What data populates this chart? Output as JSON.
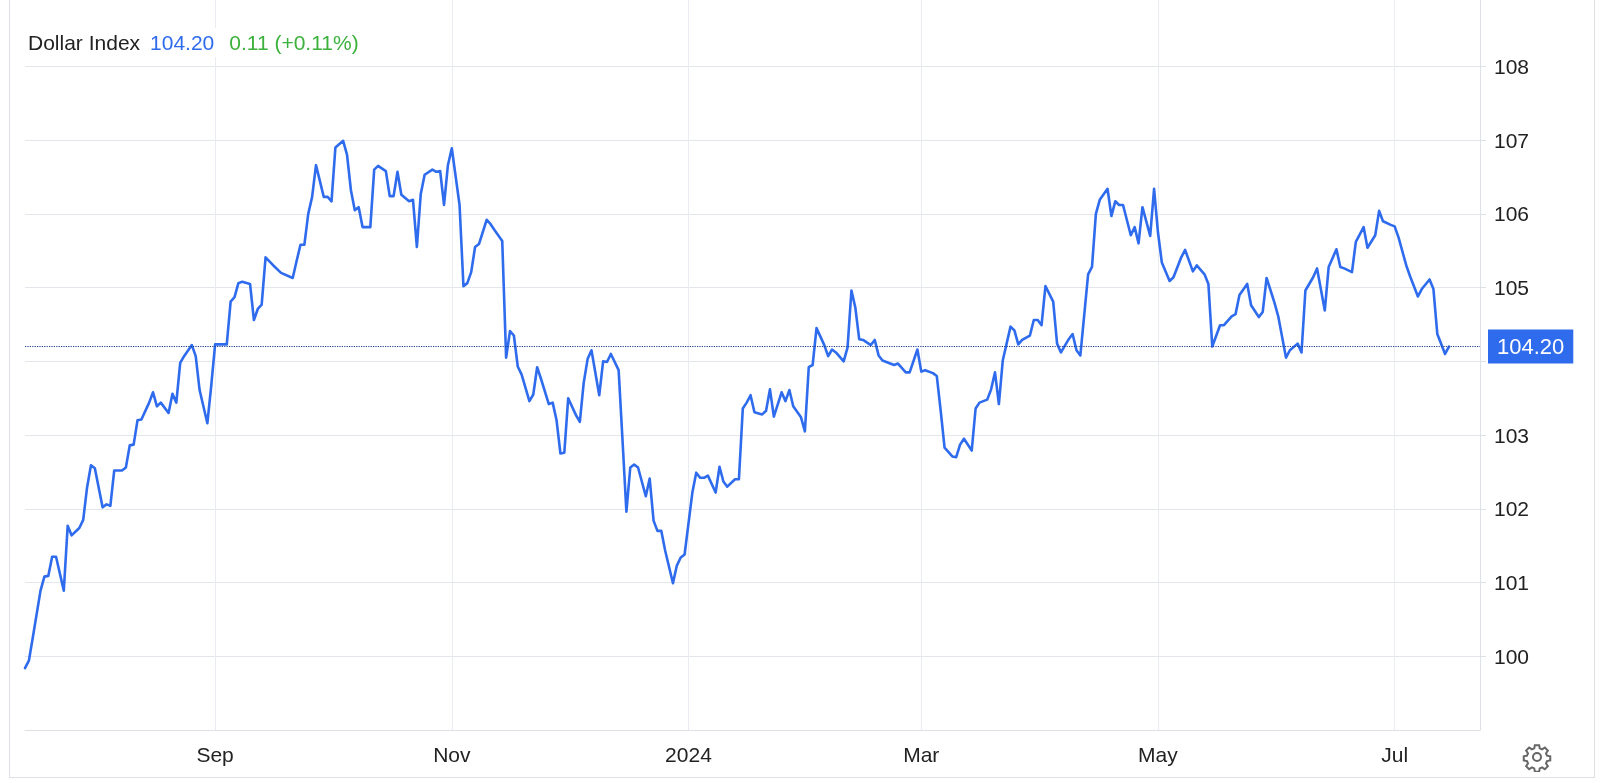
{
  "chart_data": {
    "type": "line",
    "title": "Dollar Index",
    "annotations": [
      "104.20",
      "0.11 (+0.11%)"
    ],
    "xlim": [
      "2023-07-14",
      "2024-07-23"
    ],
    "xticks": [
      {
        "value": "2023-09-01",
        "label": "Sep"
      },
      {
        "value": "2023-11-01",
        "label": "Nov"
      },
      {
        "value": "2024-01-01",
        "label": "2024"
      },
      {
        "value": "2024-03-01",
        "label": "Mar"
      },
      {
        "value": "2024-05-01",
        "label": "May"
      },
      {
        "value": "2024-07-01",
        "label": "Jul"
      }
    ],
    "ylim": [
      99,
      108.9
    ],
    "yticks": [
      100,
      101,
      102,
      103,
      {
        "value": 104,
        "label": null
      },
      105,
      106,
      107,
      108
    ],
    "grid": true,
    "marker": "none",
    "line_style": "solid",
    "ref_lines": [
      {
        "axis": "y",
        "value": 104.2,
        "label": "104.20",
        "color": "#1f3f8f",
        "line_style": "dotted"
      }
    ],
    "series": [
      {
        "color": "#2f6bed",
        "x": [
          "2023-07-14",
          "2023-07-15",
          "2023-07-16",
          "2023-07-18",
          "2023-07-19",
          "2023-07-20",
          "2023-07-21",
          "2023-07-22",
          "2023-07-24",
          "2023-07-25",
          "2023-07-26",
          "2023-07-28",
          "2023-07-29",
          "2023-07-30",
          "2023-07-31",
          "2023-08-01",
          "2023-08-03",
          "2023-08-04",
          "2023-08-05",
          "2023-08-06",
          "2023-08-08",
          "2023-08-09",
          "2023-08-10",
          "2023-08-11",
          "2023-08-12",
          "2023-08-13",
          "2023-08-15",
          "2023-08-16",
          "2023-08-17",
          "2023-08-18",
          "2023-08-20",
          "2023-08-21",
          "2023-08-22",
          "2023-08-23",
          "2023-08-24",
          "2023-08-26",
          "2023-08-27",
          "2023-08-28",
          "2023-08-30",
          "2023-08-31",
          "2023-09-01",
          "2023-09-02",
          "2023-09-04",
          "2023-09-05",
          "2023-09-06",
          "2023-09-07",
          "2023-09-08",
          "2023-09-10",
          "2023-09-11",
          "2023-09-12",
          "2023-09-13",
          "2023-09-14",
          "2023-09-16",
          "2023-09-18",
          "2023-09-21",
          "2023-09-22",
          "2023-09-23",
          "2023-09-24",
          "2023-09-25",
          "2023-09-26",
          "2023-09-27",
          "2023-09-29",
          "2023-09-30",
          "2023-10-01",
          "2023-10-02",
          "2023-10-04",
          "2023-10-05",
          "2023-10-06",
          "2023-10-07",
          "2023-10-08",
          "2023-10-09",
          "2023-10-11",
          "2023-10-12",
          "2023-10-13",
          "2023-10-15",
          "2023-10-16",
          "2023-10-17",
          "2023-10-18",
          "2023-10-19",
          "2023-10-21",
          "2023-10-22",
          "2023-10-23",
          "2023-10-24",
          "2023-10-25",
          "2023-10-27",
          "2023-10-28",
          "2023-10-29",
          "2023-10-30",
          "2023-10-31",
          "2023-11-01",
          "2023-11-03",
          "2023-11-04",
          "2023-11-05",
          "2023-11-06",
          "2023-11-07",
          "2023-11-08",
          "2023-11-10",
          "2023-11-11",
          "2023-11-12",
          "2023-11-14",
          "2023-11-15",
          "2023-11-16",
          "2023-11-17",
          "2023-11-18",
          "2023-11-19",
          "2023-11-21",
          "2023-11-22",
          "2023-11-23",
          "2023-11-24",
          "2023-11-26",
          "2023-11-27",
          "2023-11-28",
          "2023-11-29",
          "2023-11-30",
          "2023-12-01",
          "2023-12-03",
          "2023-12-04",
          "2023-12-05",
          "2023-12-06",
          "2023-12-07",
          "2023-12-09",
          "2023-12-10",
          "2023-12-11",
          "2023-12-12",
          "2023-12-14",
          "2023-12-15",
          "2023-12-16",
          "2023-12-17",
          "2023-12-18",
          "2023-12-19",
          "2023-12-21",
          "2023-12-22",
          "2023-12-23",
          "2023-12-24",
          "2023-12-25",
          "2023-12-26",
          "2023-12-28",
          "2023-12-29",
          "2023-12-30",
          "2023-12-31",
          "2024-01-02",
          "2024-01-03",
          "2024-01-04",
          "2024-01-05",
          "2024-01-06",
          "2024-01-08",
          "2024-01-09",
          "2024-01-10",
          "2024-01-11",
          "2024-01-13",
          "2024-01-14",
          "2024-01-15",
          "2024-01-16",
          "2024-01-17",
          "2024-01-18",
          "2024-01-20",
          "2024-01-21",
          "2024-01-22",
          "2024-01-23",
          "2024-01-25",
          "2024-01-26",
          "2024-01-27",
          "2024-01-28",
          "2024-01-30",
          "2024-01-31",
          "2024-02-01",
          "2024-02-02",
          "2024-02-03",
          "2024-02-05",
          "2024-02-06",
          "2024-02-07",
          "2024-02-08",
          "2024-02-10",
          "2024-02-11",
          "2024-02-12",
          "2024-02-13",
          "2024-02-14",
          "2024-02-15",
          "2024-02-17",
          "2024-02-18",
          "2024-02-19",
          "2024-02-20",
          "2024-02-22",
          "2024-02-23",
          "2024-02-24",
          "2024-02-26",
          "2024-02-27",
          "2024-02-29",
          "2024-03-01",
          "2024-03-02",
          "2024-03-04",
          "2024-03-05",
          "2024-03-06",
          "2024-03-07",
          "2024-03-09",
          "2024-03-10",
          "2024-03-11",
          "2024-03-12",
          "2024-03-14",
          "2024-03-15",
          "2024-03-16",
          "2024-03-18",
          "2024-03-19",
          "2024-03-20",
          "2024-03-21",
          "2024-03-22",
          "2024-03-24",
          "2024-03-25",
          "2024-03-26",
          "2024-03-27",
          "2024-03-29",
          "2024-03-30",
          "2024-03-31",
          "2024-04-01",
          "2024-04-02",
          "2024-04-04",
          "2024-04-05",
          "2024-04-06",
          "2024-04-08",
          "2024-04-09",
          "2024-04-10",
          "2024-04-11",
          "2024-04-13",
          "2024-04-14",
          "2024-04-15",
          "2024-04-16",
          "2024-04-18",
          "2024-04-19",
          "2024-04-20",
          "2024-04-21",
          "2024-04-22",
          "2024-04-24",
          "2024-04-25",
          "2024-04-26",
          "2024-04-27",
          "2024-04-29",
          "2024-04-30",
          "2024-05-01",
          "2024-05-02",
          "2024-05-04",
          "2024-05-05",
          "2024-05-07",
          "2024-05-08",
          "2024-05-10",
          "2024-05-11",
          "2024-05-13",
          "2024-05-14",
          "2024-05-15",
          "2024-05-17",
          "2024-05-18",
          "2024-05-20",
          "2024-05-21",
          "2024-05-22",
          "2024-05-24",
          "2024-05-25",
          "2024-05-27",
          "2024-05-28",
          "2024-05-29",
          "2024-05-31",
          "2024-06-01",
          "2024-06-03",
          "2024-06-04",
          "2024-06-06",
          "2024-06-07",
          "2024-06-08",
          "2024-06-10",
          "2024-06-11",
          "2024-06-13",
          "2024-06-14",
          "2024-06-16",
          "2024-06-17",
          "2024-06-18",
          "2024-06-20",
          "2024-06-21",
          "2024-06-23",
          "2024-06-24",
          "2024-06-26",
          "2024-06-27",
          "2024-06-28",
          "2024-06-30",
          "2024-07-01",
          "2024-07-02",
          "2024-07-04",
          "2024-07-05",
          "2024-07-07",
          "2024-07-08",
          "2024-07-10",
          "2024-07-11",
          "2024-07-12",
          "2024-07-14",
          "2024-07-15"
        ],
        "values": [
          99.84,
          99.94,
          100.25,
          100.89,
          101.08,
          101.09,
          101.35,
          101.35,
          100.89,
          101.77,
          101.64,
          101.74,
          101.85,
          102.29,
          102.59,
          102.55,
          102.02,
          102.06,
          102.04,
          102.52,
          102.52,
          102.56,
          102.86,
          102.87,
          103.2,
          103.21,
          103.44,
          103.58,
          103.39,
          103.44,
          103.3,
          103.56,
          103.44,
          103.98,
          104.07,
          104.22,
          104.07,
          103.61,
          103.16,
          103.67,
          104.23,
          104.23,
          104.23,
          104.81,
          104.87,
          105.06,
          105.08,
          105.05,
          104.56,
          104.71,
          104.77,
          105.41,
          105.3,
          105.2,
          105.13,
          105.36,
          105.58,
          105.58,
          106.0,
          106.23,
          106.66,
          106.23,
          106.23,
          106.17,
          106.9,
          106.99,
          106.8,
          106.32,
          106.05,
          106.09,
          105.82,
          105.82,
          106.6,
          106.65,
          106.58,
          106.24,
          106.24,
          106.57,
          106.26,
          106.17,
          106.19,
          105.55,
          106.27,
          106.53,
          106.6,
          106.57,
          106.58,
          106.12,
          106.66,
          106.89,
          106.12,
          105.02,
          105.06,
          105.21,
          105.55,
          105.59,
          105.92,
          105.86,
          105.78,
          105.63,
          104.05,
          104.41,
          104.35,
          103.93,
          103.82,
          103.46,
          103.55,
          103.92,
          103.76,
          103.42,
          103.44,
          103.2,
          102.75,
          102.76,
          103.5,
          103.27,
          103.18,
          103.71,
          104.03,
          104.15,
          103.54,
          104.0,
          103.99,
          104.1,
          103.88,
          102.93,
          101.96,
          102.56,
          102.6,
          102.56,
          102.17,
          102.41,
          101.84,
          101.7,
          101.7,
          101.43,
          100.99,
          101.23,
          101.34,
          101.38,
          102.22,
          102.49,
          102.42,
          102.42,
          102.45,
          102.22,
          102.57,
          102.37,
          102.3,
          102.4,
          102.4,
          103.36,
          103.44,
          103.54,
          103.31,
          103.28,
          103.33,
          103.62,
          103.25,
          103.58,
          103.46,
          103.61,
          103.39,
          103.24,
          103.05,
          103.92,
          103.95,
          104.45,
          104.22,
          104.07,
          104.16,
          104.12,
          104.0,
          104.19,
          104.96,
          104.73,
          104.3,
          104.29,
          104.22,
          104.29,
          104.08,
          104.01,
          103.97,
          103.95,
          103.97,
          103.85,
          103.85,
          104.16,
          103.86,
          103.88,
          103.84,
          103.8,
          103.33,
          102.83,
          102.71,
          102.7,
          102.87,
          102.95,
          102.79,
          103.36,
          103.44,
          103.48,
          103.62,
          103.85,
          103.42,
          104.01,
          104.47,
          104.42,
          104.23,
          104.29,
          104.35,
          104.56,
          104.56,
          104.49,
          105.02,
          104.81,
          104.24,
          104.12,
          104.3,
          104.37,
          104.15,
          104.08,
          105.18,
          105.28,
          106.0,
          106.19,
          106.34,
          105.97,
          106.17,
          106.12,
          106.12,
          105.71,
          105.82,
          105.6,
          106.09,
          105.7,
          106.34,
          105.75,
          105.34,
          105.09,
          105.14,
          105.41,
          105.51,
          105.22,
          105.3,
          105.18,
          105.05,
          104.2,
          104.49,
          104.49,
          104.61,
          104.64,
          104.9,
          105.05,
          104.76,
          104.6,
          104.67,
          105.13,
          104.8,
          104.61,
          104.05,
          104.15,
          104.24,
          104.12,
          104.96,
          105.14,
          105.26,
          104.69,
          105.28,
          105.52,
          105.28,
          105.26,
          105.21,
          105.62,
          105.82,
          105.54,
          105.71,
          106.04,
          105.9,
          105.85,
          105.83,
          105.68,
          105.3,
          105.15,
          104.88,
          104.98,
          105.11,
          104.98,
          104.37,
          104.1,
          104.2
        ]
      }
    ]
  }
}
